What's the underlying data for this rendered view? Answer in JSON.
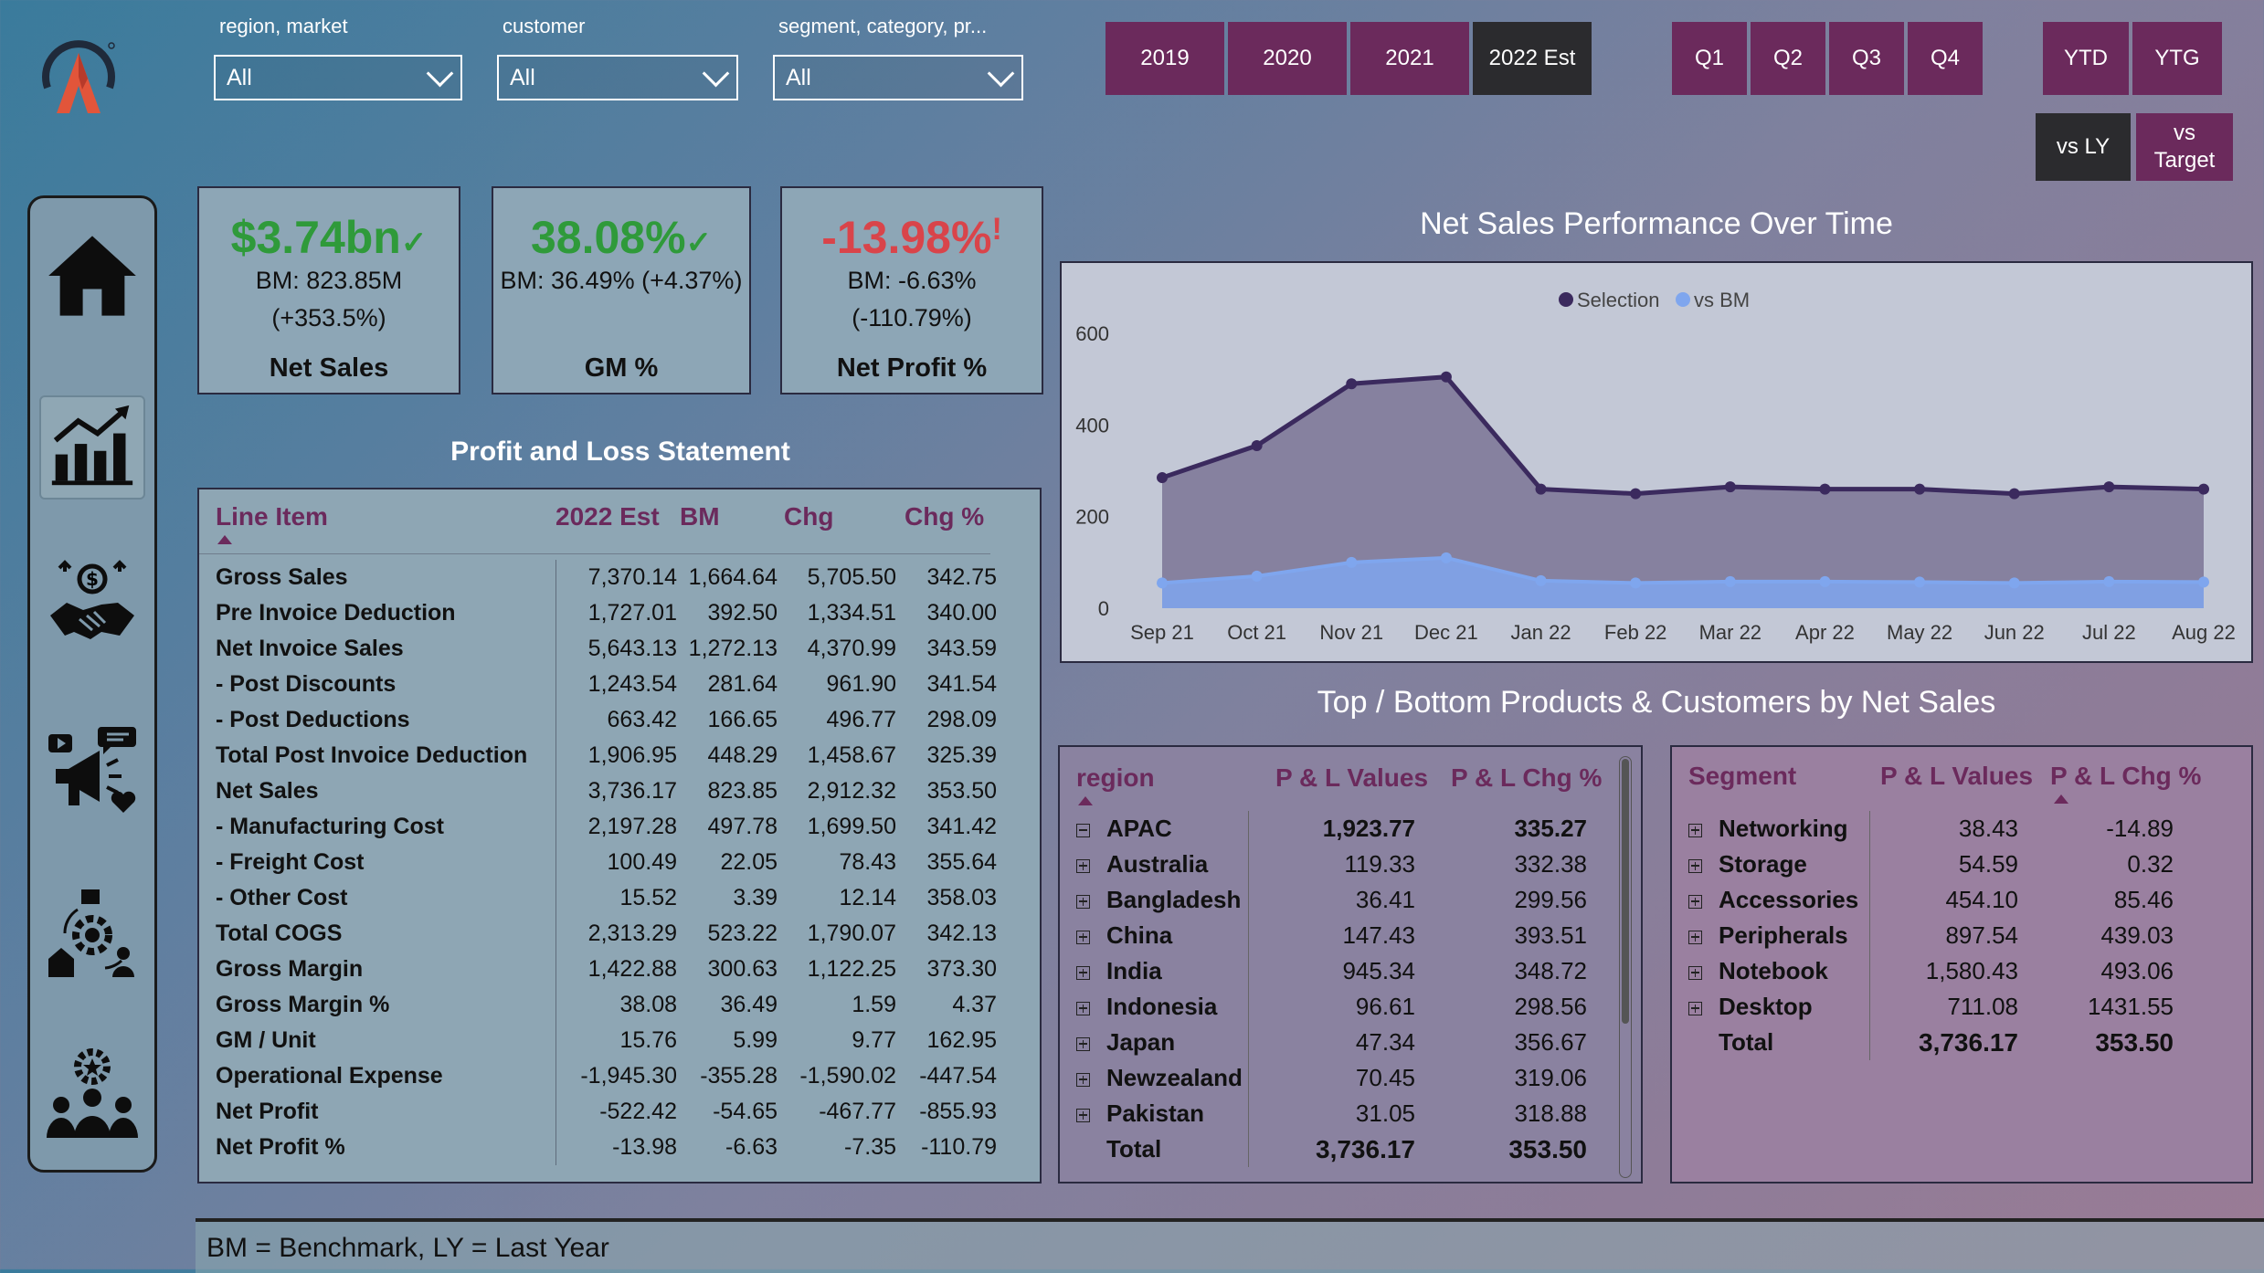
{
  "filters": [
    {
      "label": "region, market",
      "value": "All"
    },
    {
      "label": "customer",
      "value": "All"
    },
    {
      "label": "segment, category, pr...",
      "value": "All"
    }
  ],
  "years": [
    "2019",
    "2020",
    "2021",
    "2022 Est"
  ],
  "quarters": [
    "Q1",
    "Q2",
    "Q3",
    "Q4"
  ],
  "periods": [
    "YTD",
    "YTG"
  ],
  "compare": [
    "vs LY",
    "vs\nTarget"
  ],
  "nav": [
    "home-icon",
    "chart-growth-icon",
    "handshake-money-icon",
    "marketing-megaphone-icon",
    "supply-chain-icon",
    "team-settings-icon"
  ],
  "kpis": [
    {
      "value": "$3.74bn",
      "mark": "✓",
      "line1": "BM: 823.85M",
      "line2": "(+353.5%)",
      "name": "Net Sales",
      "status": "positive"
    },
    {
      "value": "38.08%",
      "mark": "✓",
      "line1": "BM: 36.49% (+4.37%)",
      "line2": "",
      "name": "GM %",
      "status": "positive"
    },
    {
      "value": "-13.98%",
      "mark": "!",
      "line1": "BM: -6.63%",
      "line2": "(-110.79%)",
      "name": "Net Profit %",
      "status": "negative"
    }
  ],
  "pl": {
    "title": "Profit and Loss Statement",
    "headers": [
      "Line Item",
      "2022 Est",
      "BM",
      "Chg",
      "Chg %"
    ],
    "rows": [
      [
        "Gross Sales",
        "7,370.14",
        "1,664.64",
        "5,705.50",
        "342.75"
      ],
      [
        "Pre Invoice Deduction",
        "1,727.01",
        "392.50",
        "1,334.51",
        "340.00"
      ],
      [
        "Net Invoice Sales",
        "5,643.13",
        "1,272.13",
        "4,370.99",
        "343.59"
      ],
      [
        "- Post Discounts",
        "1,243.54",
        "281.64",
        "961.90",
        "341.54"
      ],
      [
        "- Post Deductions",
        "663.42",
        "166.65",
        "496.77",
        "298.09"
      ],
      [
        "Total Post Invoice Deduction",
        "1,906.95",
        "448.29",
        "1,458.67",
        "325.39"
      ],
      [
        "Net Sales",
        "3,736.17",
        "823.85",
        "2,912.32",
        "353.50"
      ],
      [
        "- Manufacturing Cost",
        "2,197.28",
        "497.78",
        "1,699.50",
        "341.42"
      ],
      [
        "- Freight Cost",
        "100.49",
        "22.05",
        "78.43",
        "355.64"
      ],
      [
        "- Other Cost",
        "15.52",
        "3.39",
        "12.14",
        "358.03"
      ],
      [
        "Total COGS",
        "2,313.29",
        "523.22",
        "1,790.07",
        "342.13"
      ],
      [
        "Gross Margin",
        "1,422.88",
        "300.63",
        "1,122.25",
        "373.30"
      ],
      [
        "Gross Margin %",
        "38.08",
        "36.49",
        "1.59",
        "4.37"
      ],
      [
        "GM / Unit",
        "15.76",
        "5.99",
        "9.77",
        "162.95"
      ],
      [
        "Operational Expense",
        "-1,945.30",
        "-355.28",
        "-1,590.02",
        "-447.54"
      ],
      [
        "Net Profit",
        "-522.42",
        "-54.65",
        "-467.77",
        "-855.93"
      ],
      [
        "Net Profit %",
        "-13.98",
        "-6.63",
        "-7.35",
        "-110.79"
      ]
    ]
  },
  "chart_title": "Net Sales Performance Over Time",
  "chart_data": {
    "type": "area",
    "x": [
      "Sep 21",
      "Oct 21",
      "Nov 21",
      "Dec 21",
      "Jan 22",
      "Feb 22",
      "Mar 22",
      "Apr 22",
      "May 22",
      "Jun 22",
      "Jul 22",
      "Aug 22"
    ],
    "series": [
      {
        "name": "Selection",
        "color": "#3b2a5e",
        "values": [
          285,
          355,
          490,
          505,
          260,
          250,
          265,
          260,
          260,
          250,
          265,
          260
        ]
      },
      {
        "name": "vs BM",
        "color": "#7fa6ee",
        "values": [
          55,
          70,
          100,
          110,
          60,
          55,
          58,
          58,
          57,
          55,
          58,
          57
        ]
      }
    ],
    "yticks": [
      0,
      200,
      400,
      600
    ],
    "ylim": [
      0,
      650
    ],
    "legend": "top"
  },
  "tb_title": "Top / Bottom Products & Customers by Net Sales",
  "region_table": {
    "headers": [
      "region",
      "P & L Values",
      "P & L Chg %"
    ],
    "rows": [
      {
        "name": "APAC",
        "v": "1,923.77",
        "c": "335.27",
        "icon": "minus"
      },
      {
        "name": "Australia",
        "v": "119.33",
        "c": "332.38",
        "icon": "plus"
      },
      {
        "name": "Bangladesh",
        "v": "36.41",
        "c": "299.56",
        "icon": "plus"
      },
      {
        "name": "China",
        "v": "147.43",
        "c": "393.51",
        "icon": "plus"
      },
      {
        "name": "India",
        "v": "945.34",
        "c": "348.72",
        "icon": "plus"
      },
      {
        "name": "Indonesia",
        "v": "96.61",
        "c": "298.56",
        "icon": "plus"
      },
      {
        "name": "Japan",
        "v": "47.34",
        "c": "356.67",
        "icon": "plus"
      },
      {
        "name": "Newzealand",
        "v": "70.45",
        "c": "319.06",
        "icon": "plus"
      },
      {
        "name": "Pakistan",
        "v": "31.05",
        "c": "318.88",
        "icon": "plus"
      }
    ],
    "total": {
      "name": "Total",
      "v": "3,736.17",
      "c": "353.50"
    }
  },
  "segment_table": {
    "headers": [
      "Segment",
      "P & L Values",
      "P & L Chg %"
    ],
    "rows": [
      {
        "name": "Networking",
        "v": "38.43",
        "c": "-14.89"
      },
      {
        "name": "Storage",
        "v": "54.59",
        "c": "0.32"
      },
      {
        "name": "Accessories",
        "v": "454.10",
        "c": "85.46"
      },
      {
        "name": "Peripherals",
        "v": "897.54",
        "c": "439.03"
      },
      {
        "name": "Notebook",
        "v": "1,580.43",
        "c": "493.06"
      },
      {
        "name": "Desktop",
        "v": "711.08",
        "c": "1431.55"
      }
    ],
    "total": {
      "name": "Total",
      "v": "3,736.17",
      "c": "353.50"
    }
  },
  "footer": "BM = Benchmark, LY = Last Year"
}
